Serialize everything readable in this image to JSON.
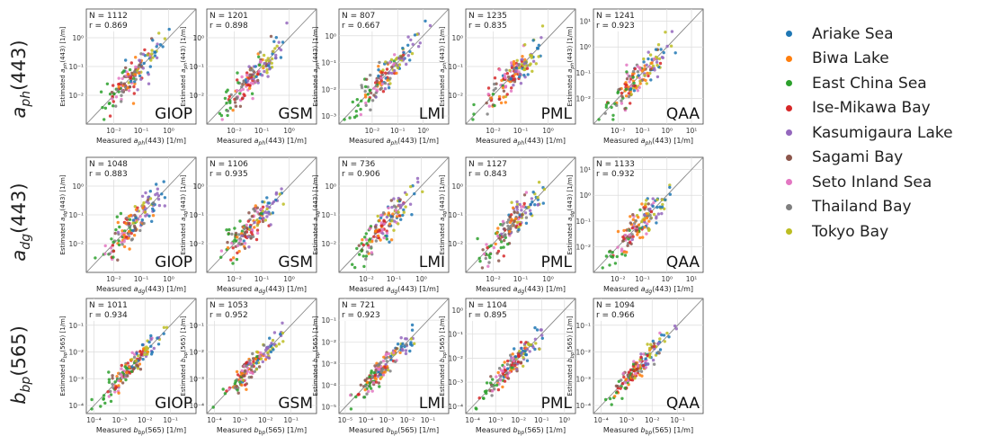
{
  "figure": {
    "row_labels": [
      {
        "main": "a",
        "sub": "ph",
        "tail": "(443)"
      },
      {
        "main": "a",
        "sub": "dg",
        "tail": "(443)"
      },
      {
        "main": "b",
        "sub": "bp",
        "tail": "(565)"
      }
    ],
    "model_names": [
      "GIOP",
      "GSM",
      "LMI",
      "PML",
      "QAA"
    ]
  },
  "legend": {
    "items": [
      {
        "label": "Ariake Sea",
        "color": "#1f77b4"
      },
      {
        "label": "Biwa Lake",
        "color": "#ff7f0e"
      },
      {
        "label": "East China Sea",
        "color": "#2ca02c"
      },
      {
        "label": "Ise-Mikawa Bay",
        "color": "#d62728"
      },
      {
        "label": "Kasumigaura Lake",
        "color": "#9467bd"
      },
      {
        "label": "Sagami Bay",
        "color": "#8c564b"
      },
      {
        "label": "Seto Inland Sea",
        "color": "#e377c2"
      },
      {
        "label": "Thailand Bay",
        "color": "#7f7f7f"
      },
      {
        "label": "Tokyo Bay",
        "color": "#bcbd22"
      }
    ]
  },
  "chart_data": [
    {
      "type": "scatter",
      "row": 0,
      "col": 0,
      "model": "GIOP",
      "stats": [
        "N = 1112",
        "r = 0.869"
      ],
      "xlabel": {
        "pre": "Measured ",
        "main": "a",
        "sub": "ph",
        "post": "(443) [1/m]"
      },
      "ylabel": {
        "pre": "Estimated ",
        "main": "a",
        "sub": "ph",
        "post": "(443) [1/m]"
      },
      "xticks": [
        "10⁻²",
        "10⁻¹",
        "10⁰"
      ],
      "yticks": [
        "10⁻²",
        "10⁻¹",
        "10⁰"
      ],
      "scale": "log",
      "xlim": [
        0.001,
        10
      ],
      "ylim": [
        0.001,
        10
      ],
      "one_to_one_line": true,
      "grid": true
    },
    {
      "type": "scatter",
      "row": 0,
      "col": 1,
      "model": "GSM",
      "stats": [
        "N = 1201",
        "r = 0.898"
      ],
      "xlabel": {
        "pre": "Measured ",
        "main": "a",
        "sub": "ph",
        "post": "(443) [1/m]"
      },
      "ylabel": {
        "pre": "Estimated ",
        "main": "a",
        "sub": "ph",
        "post": "(443) [1/m]"
      },
      "xticks": [
        "10⁻²",
        "10⁻¹",
        "10⁰"
      ],
      "yticks": [
        "10⁻²",
        "10⁻¹",
        "10⁰"
      ],
      "scale": "log",
      "xlim": [
        0.001,
        10
      ],
      "ylim": [
        0.001,
        10
      ],
      "one_to_one_line": true,
      "grid": true
    },
    {
      "type": "scatter",
      "row": 0,
      "col": 2,
      "model": "LMI",
      "stats": [
        "N = 807",
        "r = 0.667"
      ],
      "xlabel": {
        "pre": "Measured ",
        "main": "a",
        "sub": "ph",
        "post": "(443) [1/m]"
      },
      "ylabel": {
        "pre": "Estimated ",
        "main": "a",
        "sub": "ph",
        "post": "(443) [1/m]"
      },
      "xticks": [
        "10⁻²",
        "10⁻¹",
        "10⁰"
      ],
      "yticks": [
        "10⁻³",
        "10⁻²",
        "10⁻¹",
        "10⁰"
      ],
      "scale": "log",
      "xlim": [
        0.0005,
        10
      ],
      "ylim": [
        0.0005,
        10
      ],
      "one_to_one_line": true,
      "grid": true
    },
    {
      "type": "scatter",
      "row": 0,
      "col": 3,
      "model": "PML",
      "stats": [
        "N = 1235",
        "r = 0.835"
      ],
      "xlabel": {
        "pre": "Measured ",
        "main": "a",
        "sub": "ph",
        "post": "(443) [1/m]"
      },
      "ylabel": {
        "pre": "Estimated ",
        "main": "a",
        "sub": "ph",
        "post": "(443) [1/m]"
      },
      "xticks": [
        "10⁻²",
        "10⁻¹",
        "10⁰"
      ],
      "yticks": [
        "10⁻²",
        "10⁻¹",
        "10⁰"
      ],
      "scale": "log",
      "xlim": [
        0.001,
        10
      ],
      "ylim": [
        0.001,
        10
      ],
      "one_to_one_line": true,
      "grid": true
    },
    {
      "type": "scatter",
      "row": 0,
      "col": 4,
      "model": "QAA",
      "stats": [
        "N = 1241",
        "r = 0.923"
      ],
      "xlabel": {
        "pre": "Measured ",
        "main": "a",
        "sub": "ph",
        "post": "(443) [1/m]"
      },
      "ylabel": {
        "pre": "Estimated ",
        "main": "a",
        "sub": "ph",
        "post": "(443) [1/m]"
      },
      "xticks": [
        "10⁻²",
        "10⁻¹",
        "10⁰",
        "10¹"
      ],
      "yticks": [
        "10⁻²",
        "10⁻¹",
        "10⁰",
        "10¹"
      ],
      "scale": "log",
      "xlim": [
        0.001,
        30
      ],
      "ylim": [
        0.001,
        30
      ],
      "one_to_one_line": true,
      "grid": true
    },
    {
      "type": "scatter",
      "row": 1,
      "col": 0,
      "model": "GIOP",
      "stats": [
        "N = 1048",
        "r = 0.883"
      ],
      "xlabel": {
        "pre": "Measured ",
        "main": "a",
        "sub": "dg",
        "post": "(443) [1/m]"
      },
      "ylabel": {
        "pre": "Estimated ",
        "main": "a",
        "sub": "dg",
        "post": "(443) [1/m]"
      },
      "xticks": [
        "10⁻²",
        "10⁻¹",
        "10⁰"
      ],
      "yticks": [
        "10⁻²",
        "10⁻¹",
        "10⁰"
      ],
      "scale": "log",
      "xlim": [
        0.001,
        10
      ],
      "ylim": [
        0.001,
        10
      ],
      "one_to_one_line": true,
      "grid": true
    },
    {
      "type": "scatter",
      "row": 1,
      "col": 1,
      "model": "GSM",
      "stats": [
        "N = 1106",
        "r = 0.935"
      ],
      "xlabel": {
        "pre": "Measured ",
        "main": "a",
        "sub": "dg",
        "post": "(443) [1/m]"
      },
      "ylabel": {
        "pre": "Estimated ",
        "main": "a",
        "sub": "dg",
        "post": "(443) [1/m]"
      },
      "xticks": [
        "10⁻²",
        "10⁻¹",
        "10⁰"
      ],
      "yticks": [
        "10⁻²",
        "10⁻¹",
        "10⁰"
      ],
      "scale": "log",
      "xlim": [
        0.001,
        10
      ],
      "ylim": [
        0.001,
        10
      ],
      "one_to_one_line": true,
      "grid": true
    },
    {
      "type": "scatter",
      "row": 1,
      "col": 2,
      "model": "LMI",
      "stats": [
        "N = 736",
        "r = 0.906"
      ],
      "xlabel": {
        "pre": "Measured ",
        "main": "a",
        "sub": "dg",
        "post": "(443) [1/m]"
      },
      "ylabel": {
        "pre": "Estimated ",
        "main": "a",
        "sub": "dg",
        "post": "(443) [1/m]"
      },
      "xticks": [
        "10⁻²",
        "10⁻¹",
        "10⁰"
      ],
      "yticks": [
        "10⁻²",
        "10⁻¹",
        "10⁰"
      ],
      "scale": "log",
      "xlim": [
        0.001,
        10
      ],
      "ylim": [
        0.001,
        10
      ],
      "one_to_one_line": true,
      "grid": true
    },
    {
      "type": "scatter",
      "row": 1,
      "col": 3,
      "model": "PML",
      "stats": [
        "N = 1127",
        "r = 0.843"
      ],
      "xlabel": {
        "pre": "Measured ",
        "main": "a",
        "sub": "dg",
        "post": "(443) [1/m]"
      },
      "ylabel": {
        "pre": "Estimated ",
        "main": "a",
        "sub": "dg",
        "post": "(443) [1/m]"
      },
      "xticks": [
        "10⁻²",
        "10⁻¹",
        "10⁰"
      ],
      "yticks": [
        "10⁻²",
        "10⁻¹",
        "10⁰"
      ],
      "scale": "log",
      "xlim": [
        0.001,
        10
      ],
      "ylim": [
        0.001,
        10
      ],
      "one_to_one_line": true,
      "grid": true
    },
    {
      "type": "scatter",
      "row": 1,
      "col": 4,
      "model": "QAA",
      "stats": [
        "N = 1133",
        "r = 0.932"
      ],
      "xlabel": {
        "pre": "Measured ",
        "main": "a",
        "sub": "dg",
        "post": "(443) [1/m]"
      },
      "ylabel": {
        "pre": "Estimated ",
        "main": "a",
        "sub": "dg",
        "post": "(443) [1/m]"
      },
      "xticks": [
        "10⁻²",
        "10⁻¹",
        "10⁰",
        "10¹"
      ],
      "yticks": [
        "10⁻²",
        "10⁻¹",
        "10⁰",
        "10¹"
      ],
      "scale": "log",
      "xlim": [
        0.001,
        30
      ],
      "ylim": [
        0.001,
        30
      ],
      "one_to_one_line": true,
      "grid": true
    },
    {
      "type": "scatter",
      "row": 2,
      "col": 0,
      "model": "GIOP",
      "stats": [
        "N = 1011",
        "r = 0.934"
      ],
      "xlabel": {
        "pre": "Measured ",
        "main": "b",
        "sub": "bp",
        "post": "(565) [1/m]"
      },
      "ylabel": {
        "pre": "Estimated ",
        "main": "b",
        "sub": "bp",
        "post": "(565) [1/m]"
      },
      "xticks": [
        "10⁻⁴",
        "10⁻³",
        "10⁻²",
        "10⁻¹"
      ],
      "yticks": [
        "10⁻⁴",
        "10⁻³",
        "10⁻²",
        "10⁻¹"
      ],
      "scale": "log",
      "xlim": [
        5e-05,
        1
      ],
      "ylim": [
        5e-05,
        1
      ],
      "one_to_one_line": true,
      "grid": true
    },
    {
      "type": "scatter",
      "row": 2,
      "col": 1,
      "model": "GSM",
      "stats": [
        "N = 1053",
        "r = 0.952"
      ],
      "xlabel": {
        "pre": "Measured ",
        "main": "b",
        "sub": "bp",
        "post": "(565) [1/m]"
      },
      "ylabel": {
        "pre": "Estimated ",
        "main": "b",
        "sub": "bp",
        "post": "(565) [1/m]"
      },
      "xticks": [
        "10⁻⁴",
        "10⁻³",
        "10⁻²",
        "10⁻¹"
      ],
      "yticks": [
        "10⁻⁴",
        "10⁻³",
        "10⁻²",
        "10⁻¹"
      ],
      "scale": "log",
      "xlim": [
        5e-05,
        1
      ],
      "ylim": [
        5e-05,
        1
      ],
      "one_to_one_line": true,
      "grid": true
    },
    {
      "type": "scatter",
      "row": 2,
      "col": 2,
      "model": "LMI",
      "stats": [
        "N = 721",
        "r = 0.923"
      ],
      "xlabel": {
        "pre": "Measured ",
        "main": "b",
        "sub": "bp",
        "post": "(565) [1/m]"
      },
      "ylabel": {
        "pre": "Estimated ",
        "main": "b",
        "sub": "bp",
        "post": "(565) [1/m]"
      },
      "xticks": [
        "10⁻⁵",
        "10⁻⁴",
        "10⁻³",
        "10⁻²",
        "10⁻¹"
      ],
      "yticks": [
        "10⁻⁵",
        "10⁻⁴",
        "10⁻³",
        "10⁻²",
        "10⁻¹"
      ],
      "scale": "log",
      "xlim": [
        5e-06,
        1
      ],
      "ylim": [
        5e-06,
        1
      ],
      "one_to_one_line": true,
      "grid": true
    },
    {
      "type": "scatter",
      "row": 2,
      "col": 3,
      "model": "PML",
      "stats": [
        "N = 1104",
        "r = 0.895"
      ],
      "xlabel": {
        "pre": "Measured ",
        "main": "b",
        "sub": "bp",
        "post": "(565) [1/m]"
      },
      "ylabel": {
        "pre": "Estimated ",
        "main": "b",
        "sub": "bp",
        "post": "(565) [1/m]"
      },
      "xticks": [
        "10⁻⁴",
        "10⁻³",
        "10⁻²",
        "10⁻¹",
        "10⁰"
      ],
      "yticks": [
        "10⁻⁴",
        "10⁻³",
        "10⁻²",
        "10⁻¹",
        "10⁰"
      ],
      "scale": "log",
      "xlim": [
        5e-05,
        3
      ],
      "ylim": [
        5e-05,
        3
      ],
      "one_to_one_line": true,
      "grid": true
    },
    {
      "type": "scatter",
      "row": 2,
      "col": 4,
      "model": "QAA",
      "stats": [
        "N = 1094",
        "r = 0.966"
      ],
      "xlabel": {
        "pre": "Measured ",
        "main": "b",
        "sub": "bp",
        "post": "(565) [1/m]"
      },
      "ylabel": {
        "pre": "Estimated ",
        "main": "b",
        "sub": "bp",
        "post": "(565) [1/m]"
      },
      "xticks": [
        "10⁻⁴",
        "10⁻³",
        "10⁻²",
        "10⁻¹"
      ],
      "yticks": [
        "10⁻⁴",
        "10⁻³",
        "10⁻²",
        "10⁻¹"
      ],
      "scale": "log",
      "xlim": [
        5e-05,
        1
      ],
      "ylim": [
        5e-05,
        1
      ],
      "one_to_one_line": true,
      "grid": true
    }
  ]
}
